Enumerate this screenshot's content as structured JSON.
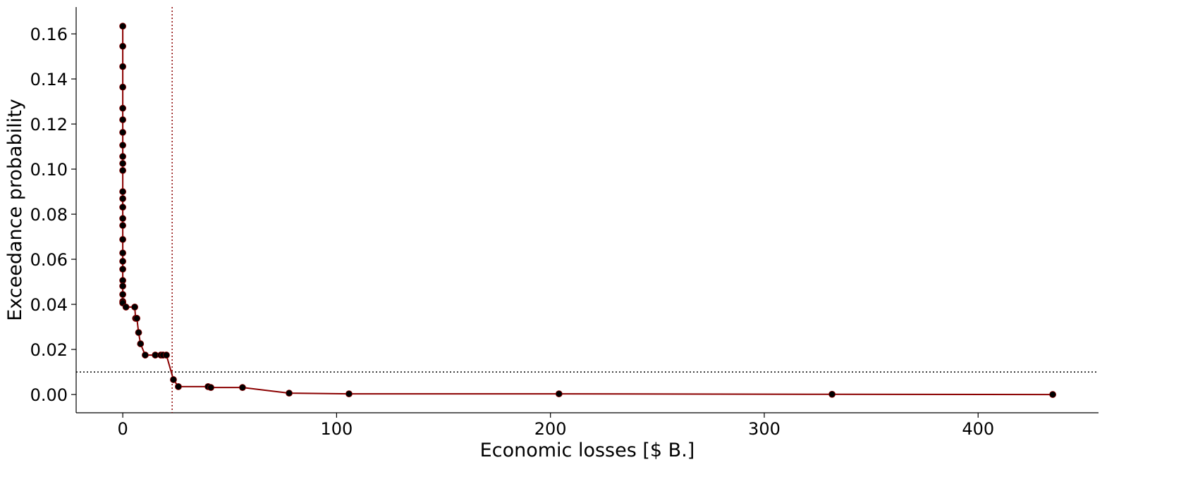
{
  "chart_data": {
    "type": "line",
    "xlabel": "Economic losses [$ B.]",
    "ylabel": "Exceedance probability",
    "x": [
      0,
      0,
      0,
      0,
      0,
      0,
      0,
      0,
      0,
      0,
      0,
      0,
      0,
      0,
      0,
      0,
      0,
      0,
      0,
      0,
      0,
      0,
      0,
      0,
      0,
      1.5,
      5.6,
      6,
      6.6,
      7.4,
      8.3,
      10.5,
      15.2,
      17.8,
      18.8,
      20.4,
      23.7,
      26,
      39.9,
      41.2,
      56,
      77.8,
      105.8,
      204,
      331.7,
      434.9
    ],
    "series": [
      {
        "color": "#8b0000",
        "marker_color": "#000000",
        "values": [
          0.1634,
          0.1545,
          0.1455,
          0.1364,
          0.127,
          0.1219,
          0.1163,
          0.1106,
          0.1056,
          0.1025,
          0.0994,
          0.09,
          0.0869,
          0.0831,
          0.0781,
          0.075,
          0.0688,
          0.0628,
          0.0591,
          0.0556,
          0.0506,
          0.0481,
          0.0444,
          0.0413,
          0.0406,
          0.0388,
          0.0388,
          0.0338,
          0.0338,
          0.0275,
          0.0225,
          0.0175,
          0.0175,
          0.0175,
          0.0175,
          0.0175,
          0.0066,
          0.0035,
          0.0035,
          0.0031,
          0.0031,
          0.0006,
          0.0003,
          0.0003,
          0.0001,
          0
        ]
      }
    ],
    "vline": {
      "value": 23.1,
      "color": "#8b0000"
    },
    "hline": {
      "value": 0.01,
      "color": "#000000"
    },
    "xlim": [
      -21.8,
      456.3
    ],
    "ylim": [
      -0.0081,
      0.1719
    ],
    "xticks": [
      0,
      100,
      200,
      300,
      400
    ],
    "yticks": [
      {
        "value": 0,
        "label": "0.00"
      },
      {
        "value": 0.02,
        "label": "0.02"
      },
      {
        "value": 0.04,
        "label": "0.04"
      },
      {
        "value": 0.06,
        "label": "0.06"
      },
      {
        "value": 0.08,
        "label": "0.08"
      },
      {
        "value": 0.1,
        "label": "0.10"
      },
      {
        "value": 0.12,
        "label": "0.12"
      },
      {
        "value": 0.14,
        "label": "0.14"
      },
      {
        "value": 0.16,
        "label": "0.16"
      }
    ]
  }
}
